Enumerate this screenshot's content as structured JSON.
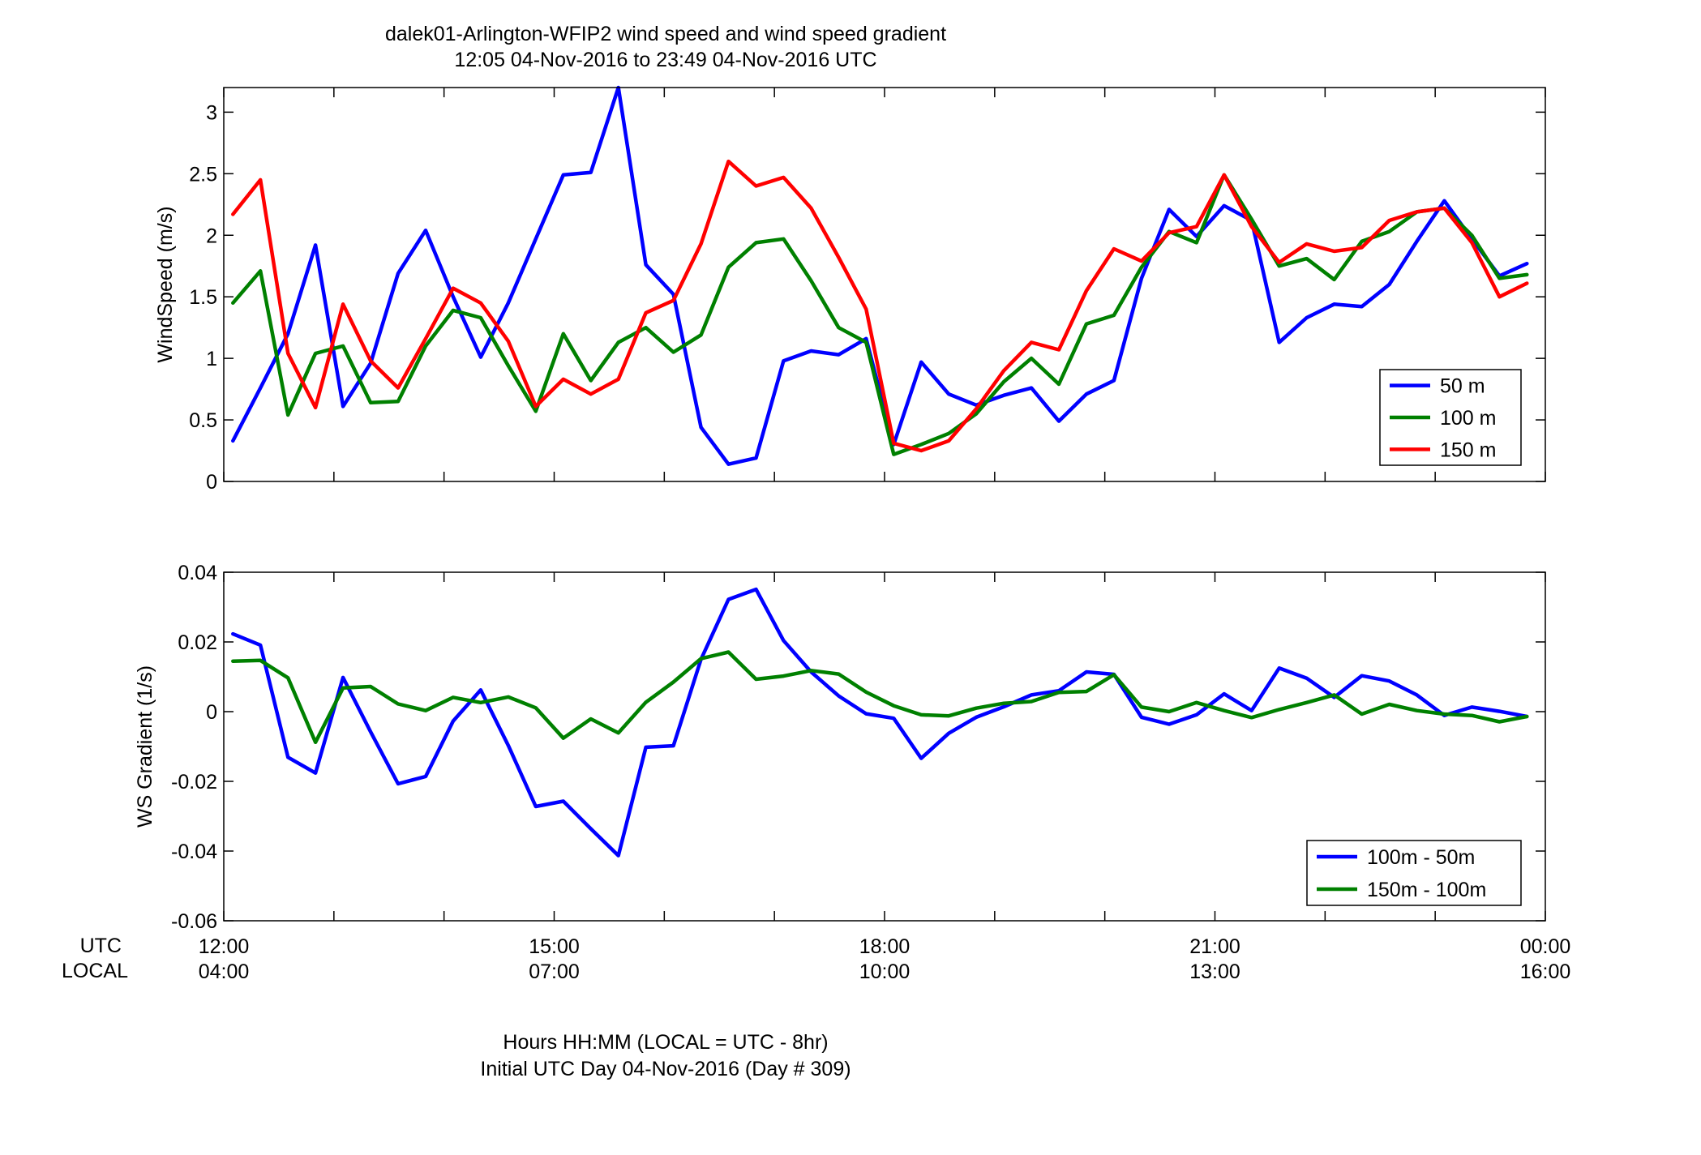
{
  "header": {
    "title_line1": "dalek01-Arlington-WFIP2  wind speed and wind speed gradient",
    "title_line2": "12:05 04-Nov-2016 to 23:49 04-Nov-2016  UTC"
  },
  "x_axis": {
    "row1_label": "UTC",
    "row2_label": "LOCAL",
    "utc_ticks": [
      "12:00",
      "15:00",
      "18:00",
      "21:00",
      "00:00"
    ],
    "local_ticks": [
      "04:00",
      "07:00",
      "10:00",
      "13:00",
      "16:00"
    ],
    "xlabel_line1": "Hours HH:MM  (LOCAL = UTC - 8hr)",
    "xlabel_line2": "Initial UTC Day 04-Nov-2016 (Day # 309)"
  },
  "chart_data": [
    {
      "type": "line",
      "ylabel": "WindSpeed (m/s)",
      "xlim": [
        12,
        24
      ],
      "ylim": [
        0,
        3.2
      ],
      "yticks": [
        0,
        0.5,
        1,
        1.5,
        2,
        2.5,
        3
      ],
      "ytick_labels": [
        "0",
        "0.5",
        "1",
        "1.5",
        "2",
        "2.5",
        "3"
      ],
      "grid": false,
      "legend_position": "bottom-right",
      "x": [
        12.083,
        12.333,
        12.583,
        12.833,
        13.083,
        13.333,
        13.583,
        13.833,
        14.083,
        14.333,
        14.583,
        14.833,
        15.083,
        15.333,
        15.583,
        15.833,
        16.083,
        16.333,
        16.583,
        16.833,
        17.083,
        17.333,
        17.583,
        17.833,
        18.083,
        18.333,
        18.583,
        18.833,
        19.083,
        19.333,
        19.583,
        19.833,
        20.083,
        20.333,
        20.583,
        20.833,
        21.083,
        21.333,
        21.583,
        21.833,
        22.083,
        22.333,
        22.583,
        22.833,
        23.083,
        23.333,
        23.583,
        23.833
      ],
      "series": [
        {
          "name": "50 m",
          "color": "#0000ff",
          "values": [
            0.33,
            0.76,
            1.2,
            1.92,
            0.61,
            0.96,
            1.69,
            2.04,
            1.5,
            1.01,
            1.45,
            1.97,
            2.49,
            2.51,
            3.2,
            1.76,
            1.52,
            0.44,
            0.14,
            0.19,
            0.98,
            1.06,
            1.03,
            1.16,
            0.3,
            0.97,
            0.71,
            0.62,
            0.7,
            0.76,
            0.49,
            0.71,
            0.82,
            1.65,
            2.21,
            1.99,
            2.24,
            2.12,
            1.13,
            1.33,
            1.44,
            1.42,
            1.6,
            1.95,
            2.28,
            1.97,
            1.67,
            1.77
          ]
        },
        {
          "name": "100 m",
          "color": "#008000",
          "values": [
            1.45,
            1.71,
            0.54,
            1.04,
            1.1,
            0.64,
            0.65,
            1.1,
            1.39,
            1.33,
            0.94,
            0.57,
            1.2,
            0.82,
            1.13,
            1.25,
            1.05,
            1.19,
            1.74,
            1.94,
            1.97,
            1.63,
            1.25,
            1.13,
            0.22,
            0.3,
            0.39,
            0.55,
            0.81,
            1.0,
            0.79,
            1.28,
            1.35,
            1.74,
            2.03,
            1.94,
            2.49,
            2.13,
            1.75,
            1.81,
            1.64,
            1.95,
            2.03,
            2.19,
            2.22,
            2.0,
            1.65,
            1.68
          ]
        },
        {
          "name": "150 m",
          "color": "#ff0000",
          "values": [
            2.17,
            2.45,
            1.04,
            0.6,
            1.44,
            0.98,
            0.76,
            1.16,
            1.57,
            1.45,
            1.14,
            0.61,
            0.83,
            0.71,
            0.83,
            1.37,
            1.47,
            1.93,
            2.6,
            2.4,
            2.47,
            2.22,
            1.82,
            1.4,
            0.31,
            0.25,
            0.33,
            0.59,
            0.9,
            1.13,
            1.07,
            1.55,
            1.89,
            1.79,
            2.02,
            2.07,
            2.49,
            2.07,
            1.78,
            1.93,
            1.87,
            1.9,
            2.12,
            2.19,
            2.22,
            1.94,
            1.5,
            1.61
          ]
        }
      ]
    },
    {
      "type": "line",
      "ylabel": "WS Gradient (1/s)",
      "xlim": [
        12,
        24
      ],
      "ylim": [
        -0.06,
        0.04
      ],
      "yticks": [
        -0.06,
        -0.04,
        -0.02,
        0,
        0.02,
        0.04
      ],
      "ytick_labels": [
        "-0.06",
        "-0.04",
        "-0.02",
        "0",
        "0.02",
        "0.04"
      ],
      "grid": false,
      "legend_position": "bottom-right",
      "x": [
        12.083,
        12.333,
        12.583,
        12.833,
        13.083,
        13.333,
        13.583,
        13.833,
        14.083,
        14.333,
        14.583,
        14.833,
        15.083,
        15.333,
        15.583,
        15.833,
        16.083,
        16.333,
        16.583,
        16.833,
        17.083,
        17.333,
        17.583,
        17.833,
        18.083,
        18.333,
        18.583,
        18.833,
        19.083,
        19.333,
        19.583,
        19.833,
        20.083,
        20.333,
        20.583,
        20.833,
        21.083,
        21.333,
        21.583,
        21.833,
        22.083,
        22.333,
        22.583,
        22.833,
        23.083,
        23.333,
        23.583,
        23.833
      ],
      "series": [
        {
          "name": "100m - 50m",
          "color": "#0000ff",
          "values": [
            0.0223,
            0.0191,
            -0.0131,
            -0.0176,
            0.0098,
            -0.0058,
            -0.0207,
            -0.0186,
            -0.0027,
            0.0062,
            -0.0097,
            -0.0272,
            -0.0257,
            -0.0336,
            -0.0413,
            -0.0102,
            -0.0098,
            0.015,
            0.0322,
            0.0351,
            0.0204,
            0.0114,
            0.0045,
            -0.0006,
            -0.0019,
            -0.0134,
            -0.0062,
            -0.0016,
            0.0014,
            0.0048,
            0.006,
            0.0114,
            0.0107,
            -0.0016,
            -0.0036,
            -0.0009,
            0.0051,
            0.0003,
            0.0125,
            0.0096,
            0.0041,
            0.0103,
            0.0088,
            0.0048,
            -0.0011,
            0.0013,
            0.0001,
            -0.0014
          ]
        },
        {
          "name": "150m - 100m",
          "color": "#008000",
          "values": [
            0.0145,
            0.0147,
            0.0097,
            -0.0088,
            0.0068,
            0.0072,
            0.0022,
            0.0003,
            0.0041,
            0.0026,
            0.0042,
            0.0011,
            -0.0076,
            -0.0021,
            -0.0061,
            0.0027,
            0.0085,
            0.0152,
            0.0171,
            0.0093,
            0.0102,
            0.0118,
            0.0108,
            0.0056,
            0.0017,
            -0.0009,
            -0.0012,
            0.001,
            0.0024,
            0.0029,
            0.0055,
            0.0058,
            0.0106,
            0.0013,
            0.0,
            0.0026,
            0.0003,
            -0.0017,
            0.0006,
            0.0026,
            0.0048,
            -0.0007,
            0.0021,
            0.0003,
            -0.0007,
            -0.0011,
            -0.0029,
            -0.0014
          ]
        }
      ]
    }
  ]
}
